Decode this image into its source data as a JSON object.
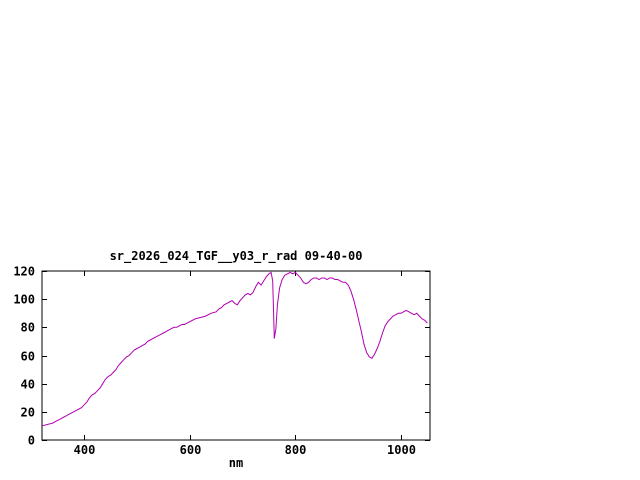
{
  "chart_data": {
    "type": "line",
    "title": "sr_2026_024_TGF__y03_r_rad 09-40-00",
    "xlabel": "nm",
    "ylabel": "",
    "xlim": [
      320,
      1055
    ],
    "ylim": [
      0,
      120
    ],
    "x_ticks": [
      400,
      600,
      800,
      1000
    ],
    "y_ticks": [
      0,
      20,
      40,
      60,
      80,
      100,
      120
    ],
    "grid": false,
    "legend_position": "none",
    "line_color": "#b000b0",
    "axis_color": "#000000",
    "background_color": "#ffffff",
    "series": [
      {
        "name": "sr_2026_024_TGF__y03_r_rad",
        "points": [
          [
            320,
            10
          ],
          [
            325,
            10.5
          ],
          [
            330,
            11
          ],
          [
            335,
            11.5
          ],
          [
            340,
            12
          ],
          [
            345,
            13
          ],
          [
            350,
            14
          ],
          [
            355,
            15
          ],
          [
            360,
            16
          ],
          [
            365,
            17
          ],
          [
            370,
            18
          ],
          [
            375,
            19
          ],
          [
            380,
            20
          ],
          [
            385,
            21
          ],
          [
            390,
            22
          ],
          [
            395,
            23
          ],
          [
            400,
            25
          ],
          [
            405,
            27
          ],
          [
            410,
            30
          ],
          [
            415,
            32
          ],
          [
            420,
            33
          ],
          [
            425,
            35
          ],
          [
            430,
            37
          ],
          [
            435,
            40
          ],
          [
            440,
            43
          ],
          [
            445,
            45
          ],
          [
            450,
            46
          ],
          [
            455,
            48
          ],
          [
            460,
            50
          ],
          [
            465,
            53
          ],
          [
            470,
            55
          ],
          [
            475,
            57
          ],
          [
            480,
            59
          ],
          [
            485,
            60
          ],
          [
            490,
            62
          ],
          [
            495,
            64
          ],
          [
            500,
            65
          ],
          [
            505,
            66
          ],
          [
            510,
            67
          ],
          [
            515,
            68
          ],
          [
            520,
            70
          ],
          [
            525,
            71
          ],
          [
            530,
            72
          ],
          [
            535,
            73
          ],
          [
            540,
            74
          ],
          [
            545,
            75
          ],
          [
            550,
            76
          ],
          [
            555,
            77
          ],
          [
            560,
            78
          ],
          [
            565,
            79
          ],
          [
            570,
            80
          ],
          [
            575,
            80
          ],
          [
            580,
            81
          ],
          [
            585,
            82
          ],
          [
            590,
            82
          ],
          [
            595,
            83
          ],
          [
            600,
            84
          ],
          [
            610,
            86
          ],
          [
            620,
            87
          ],
          [
            630,
            88
          ],
          [
            640,
            90
          ],
          [
            650,
            91
          ],
          [
            655,
            93
          ],
          [
            660,
            94
          ],
          [
            665,
            96
          ],
          [
            670,
            97
          ],
          [
            675,
            98
          ],
          [
            680,
            99
          ],
          [
            685,
            97
          ],
          [
            690,
            96
          ],
          [
            695,
            99
          ],
          [
            700,
            101
          ],
          [
            705,
            103
          ],
          [
            710,
            104
          ],
          [
            715,
            103
          ],
          [
            720,
            105
          ],
          [
            725,
            109
          ],
          [
            730,
            112
          ],
          [
            735,
            110
          ],
          [
            740,
            113
          ],
          [
            745,
            116
          ],
          [
            750,
            118
          ],
          [
            754,
            119
          ],
          [
            757,
            113
          ],
          [
            760,
            72
          ],
          [
            763,
            79
          ],
          [
            766,
            96
          ],
          [
            770,
            108
          ],
          [
            775,
            114
          ],
          [
            780,
            117
          ],
          [
            785,
            118
          ],
          [
            790,
            119
          ],
          [
            795,
            118
          ],
          [
            800,
            119
          ],
          [
            805,
            117
          ],
          [
            810,
            115
          ],
          [
            815,
            112
          ],
          [
            820,
            111
          ],
          [
            825,
            112
          ],
          [
            830,
            114
          ],
          [
            835,
            115
          ],
          [
            840,
            115
          ],
          [
            845,
            114
          ],
          [
            850,
            115
          ],
          [
            855,
            115
          ],
          [
            860,
            114
          ],
          [
            865,
            115
          ],
          [
            870,
            115
          ],
          [
            875,
            114
          ],
          [
            880,
            114
          ],
          [
            885,
            113
          ],
          [
            890,
            112
          ],
          [
            895,
            112
          ],
          [
            900,
            110
          ],
          [
            905,
            106
          ],
          [
            910,
            100
          ],
          [
            915,
            93
          ],
          [
            920,
            85
          ],
          [
            925,
            77
          ],
          [
            930,
            68
          ],
          [
            935,
            62
          ],
          [
            940,
            59
          ],
          [
            945,
            58
          ],
          [
            950,
            61
          ],
          [
            955,
            65
          ],
          [
            960,
            70
          ],
          [
            965,
            76
          ],
          [
            970,
            81
          ],
          [
            975,
            84
          ],
          [
            980,
            86
          ],
          [
            985,
            88
          ],
          [
            990,
            89
          ],
          [
            995,
            90
          ],
          [
            1000,
            90
          ],
          [
            1005,
            91
          ],
          [
            1010,
            92
          ],
          [
            1015,
            91
          ],
          [
            1020,
            90
          ],
          [
            1025,
            89
          ],
          [
            1030,
            90
          ],
          [
            1035,
            88
          ],
          [
            1040,
            86
          ],
          [
            1045,
            85
          ],
          [
            1050,
            83
          ]
        ]
      }
    ]
  }
}
